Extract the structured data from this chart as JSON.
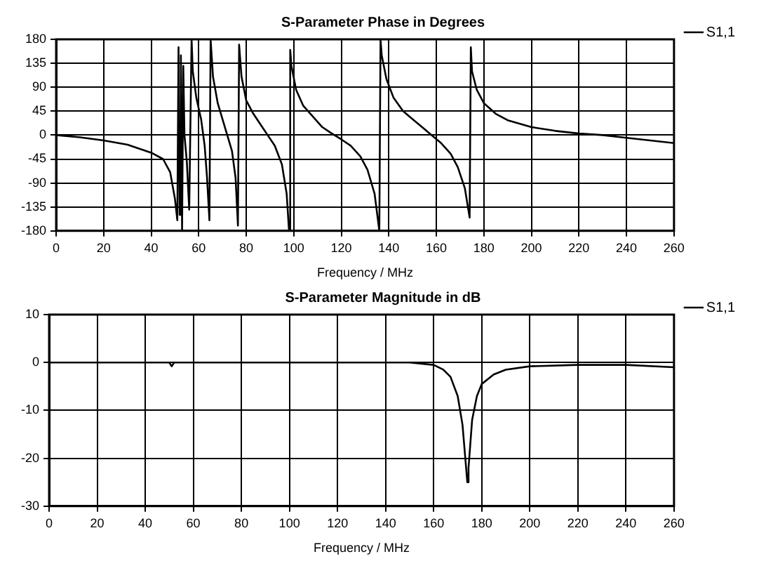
{
  "chart_data": [
    {
      "type": "line",
      "title": "S-Parameter Phase in Degrees",
      "xlabel": "Frequency / MHz",
      "xlim": [
        0,
        260
      ],
      "xticks": [
        0,
        20,
        40,
        60,
        80,
        100,
        120,
        140,
        160,
        180,
        200,
        220,
        240,
        260
      ],
      "ylim": [
        -180,
        180
      ],
      "yticks": [
        -180,
        -135,
        -90,
        -45,
        0,
        45,
        90,
        135,
        180
      ],
      "grid": true,
      "legend": "right",
      "line_style": "solid",
      "marker": "none",
      "series": [
        {
          "name": "S1,1",
          "color": "#000000",
          "x": [
            0,
            10,
            20,
            30,
            40,
            45,
            48,
            50,
            51,
            51.5,
            52,
            52.5,
            53,
            53.5,
            54,
            55,
            56,
            57,
            57.5,
            59,
            61,
            62.5,
            63.5,
            64.5,
            65,
            66,
            68,
            70,
            72,
            74,
            75.5,
            76.5,
            77,
            78,
            80,
            83,
            86,
            89,
            92,
            95,
            97,
            98,
            98.5,
            99,
            101,
            104,
            108,
            112,
            116,
            120,
            124,
            128,
            131,
            134,
            136,
            136.5,
            137,
            139,
            142,
            146,
            150,
            154,
            158,
            162,
            166,
            169,
            172,
            174,
            174.5,
            175,
            177,
            180,
            185,
            190,
            200,
            210,
            220,
            230,
            240,
            250,
            260
          ],
          "values": [
            0,
            -4,
            -10,
            -18,
            -33,
            -45,
            -70,
            -120,
            -160,
            165,
            -150,
            150,
            -180,
            130,
            0,
            -50,
            -140,
            180,
            120,
            70,
            30,
            -20,
            -80,
            -160,
            180,
            110,
            60,
            30,
            0,
            -30,
            -80,
            -170,
            170,
            110,
            65,
            40,
            20,
            0,
            -20,
            -55,
            -110,
            -180,
            160,
            130,
            85,
            55,
            35,
            15,
            3,
            -8,
            -20,
            -40,
            -65,
            -110,
            -180,
            180,
            150,
            105,
            70,
            45,
            30,
            15,
            0,
            -15,
            -35,
            -60,
            -100,
            -155,
            165,
            120,
            85,
            60,
            40,
            28,
            15,
            8,
            3,
            0,
            -5,
            -10,
            -15
          ]
        }
      ]
    },
    {
      "type": "line",
      "title": "S-Parameter Magnitude in dB",
      "xlabel": "Frequency / MHz",
      "xlim": [
        0,
        260
      ],
      "xticks": [
        0,
        20,
        40,
        60,
        80,
        100,
        120,
        140,
        160,
        180,
        200,
        220,
        240,
        260
      ],
      "ylim": [
        -30,
        10
      ],
      "yticks": [
        -30,
        -20,
        -10,
        0,
        10
      ],
      "grid": true,
      "legend": "right",
      "line_style": "solid",
      "marker": "none",
      "series": [
        {
          "name": "S1,1",
          "color": "#000000",
          "x": [
            0,
            50,
            51,
            52,
            100,
            150,
            160,
            164,
            167,
            170,
            172,
            173.5,
            174,
            174.5,
            176,
            178,
            180,
            185,
            190,
            200,
            220,
            240,
            260
          ],
          "values": [
            0,
            0,
            -0.8,
            0,
            0,
            0,
            -0.5,
            -1.5,
            -3,
            -7,
            -13,
            -22,
            -25,
            -22,
            -12,
            -7,
            -4.5,
            -2.5,
            -1.5,
            -0.8,
            -0.5,
            -0.5,
            -1
          ]
        }
      ]
    }
  ]
}
